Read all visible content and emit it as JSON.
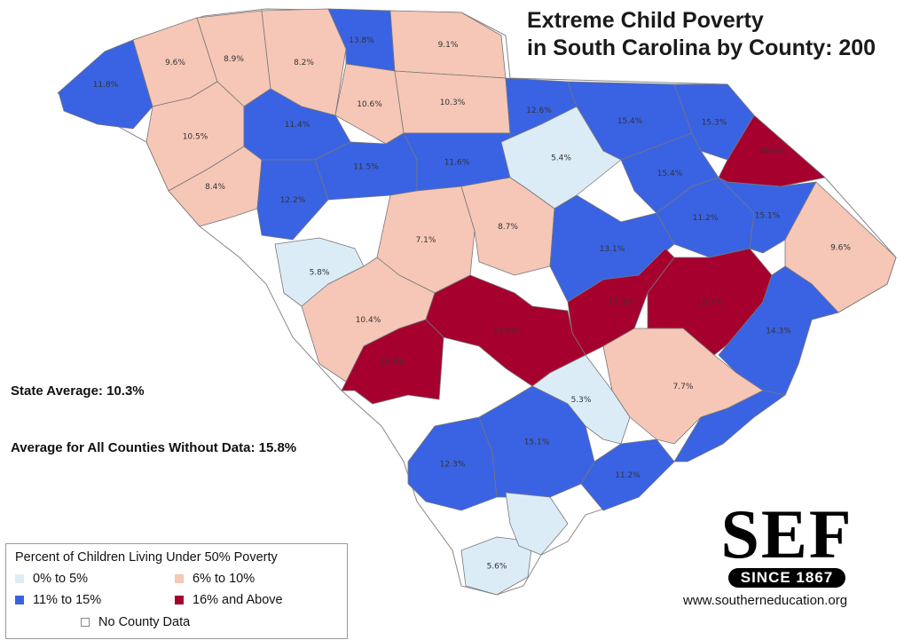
{
  "title_line1": "Extreme Child Poverty",
  "title_line2": "in South Carolina by County: 200",
  "state_average": "State Average: 10.3%",
  "avg_without_data": "Average for All Counties Without Data: 15.8%",
  "colors": {
    "cat_0_5": "#dcecf7",
    "cat_6_10": "#f6c7b6",
    "cat_11_15": "#3a63e3",
    "cat_16_up": "#a6002f",
    "no_data": "#ffffff",
    "border": "#777777"
  },
  "legend": {
    "title": "Percent of Children Living Under 50% Poverty",
    "items": [
      {
        "label": "0% to 5%",
        "category": "cat_0_5"
      },
      {
        "label": "6% to 10%",
        "category": "cat_6_10"
      },
      {
        "label": "11% to 15%",
        "category": "cat_11_15"
      },
      {
        "label": "16% and Above",
        "category": "cat_16_up"
      },
      {
        "label": "No County Data",
        "category": "no_data"
      }
    ]
  },
  "counties": [
    {
      "value": "11.8%",
      "category": "cat_11_15"
    },
    {
      "value": "9.6%",
      "category": "cat_6_10"
    },
    {
      "value": "8.9%",
      "category": "cat_6_10"
    },
    {
      "value": "8.2%",
      "category": "cat_6_10"
    },
    {
      "value": "13.8%",
      "category": "cat_11_15"
    },
    {
      "value": "9.1%",
      "category": "cat_6_10"
    },
    {
      "value": "10.6%",
      "category": "cat_6_10"
    },
    {
      "value": "10.3%",
      "category": "cat_6_10"
    },
    {
      "value": "12.6%",
      "category": "cat_11_15"
    },
    {
      "value": "15.4%",
      "category": "cat_11_15"
    },
    {
      "value": "15.3%",
      "category": "cat_11_15"
    },
    {
      "value": "10.5%",
      "category": "cat_6_10"
    },
    {
      "value": "11.4%",
      "category": "cat_11_15"
    },
    {
      "value": "11.5%",
      "category": "cat_11_15"
    },
    {
      "value": "11.6%",
      "category": "cat_11_15"
    },
    {
      "value": "5.4%",
      "category": "cat_0_5"
    },
    {
      "value": "15.4%",
      "category": "cat_11_15"
    },
    {
      "value": "18.9%",
      "category": "cat_16_up"
    },
    {
      "value": "8.4%",
      "category": "cat_6_10"
    },
    {
      "value": "12.2%",
      "category": "cat_11_15"
    },
    {
      "value": "11.2%",
      "category": "cat_11_15"
    },
    {
      "value": "15.1%",
      "category": "cat_11_15"
    },
    {
      "value": "7.1%",
      "category": "cat_6_10"
    },
    {
      "value": "8.7%",
      "category": "cat_6_10"
    },
    {
      "value": "13.1%",
      "category": "cat_11_15"
    },
    {
      "value": "9.6%",
      "category": "cat_6_10"
    },
    {
      "value": "5.8%",
      "category": "cat_0_5"
    },
    {
      "value": "17.3%",
      "category": "cat_16_up"
    },
    {
      "value": "19.7%",
      "category": "cat_16_up"
    },
    {
      "value": "10.4%",
      "category": "cat_6_10"
    },
    {
      "value": "17.8%",
      "category": "cat_16_up"
    },
    {
      "value": "14.3%",
      "category": "cat_11_15"
    },
    {
      "value": "16.5%",
      "category": "cat_16_up"
    },
    {
      "value": "7.7%",
      "category": "cat_6_10"
    },
    {
      "value": "5.3%",
      "category": "cat_0_5"
    },
    {
      "value": "12.3%",
      "category": "cat_11_15"
    },
    {
      "value": "15.1%",
      "category": "cat_11_15"
    },
    {
      "value": "11.2%",
      "category": "cat_11_15"
    },
    {
      "value": "5.6%",
      "category": "cat_0_5"
    }
  ],
  "logo": {
    "text": "SEF",
    "since": "SINCE 1867"
  },
  "url": "www.southerneducation.org"
}
